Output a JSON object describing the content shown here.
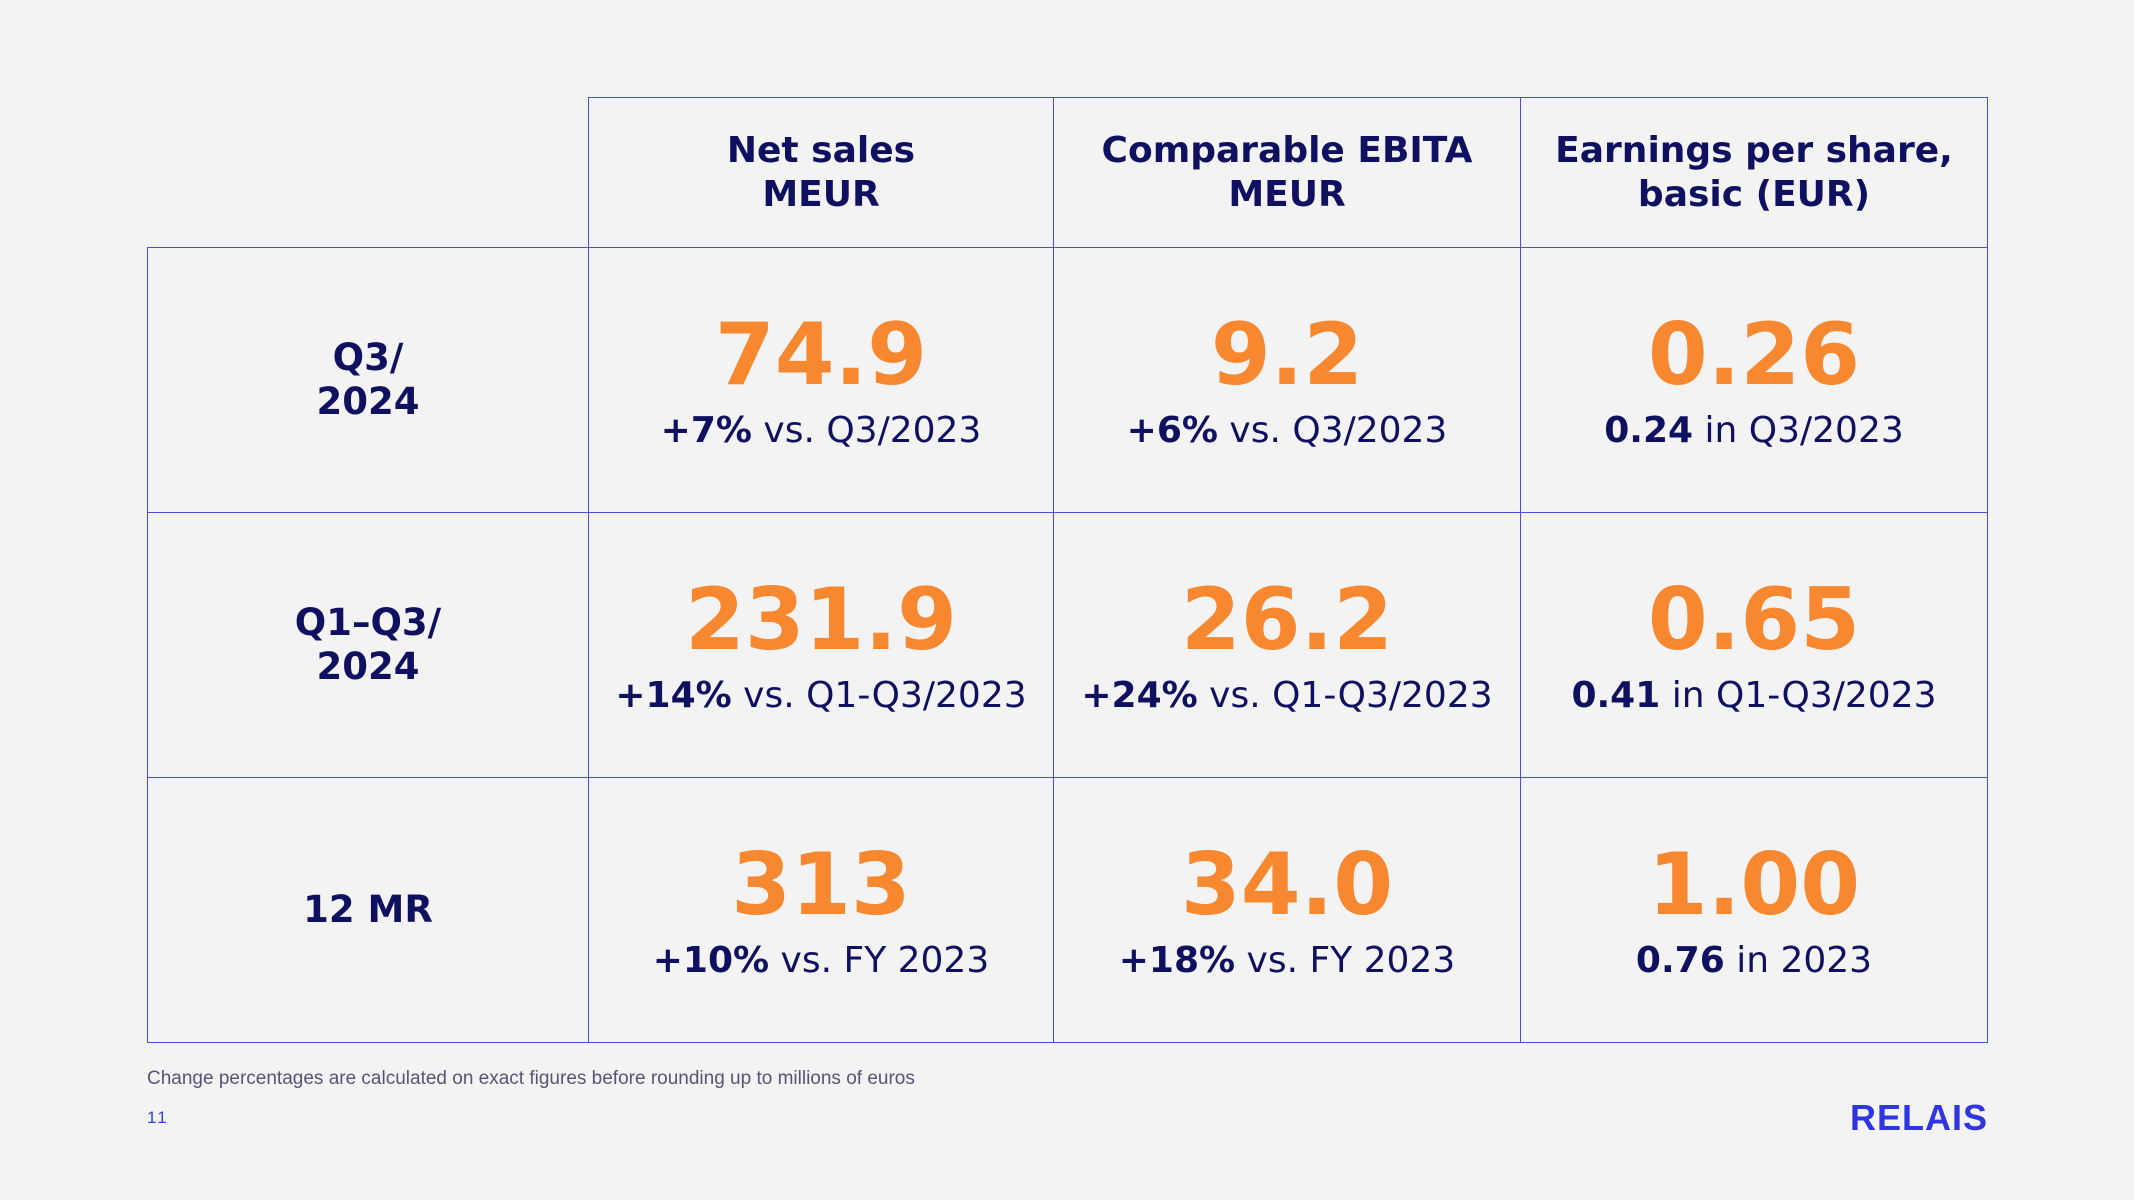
{
  "table": {
    "headers": [
      {
        "line1": "Net sales",
        "line2": "MEUR"
      },
      {
        "line1": "Comparable EBITA",
        "line2": "MEUR"
      },
      {
        "line1": "Earnings per share,",
        "line2": "basic (EUR)"
      }
    ],
    "rows": [
      {
        "label_line1": "Q3/",
        "label_line2": "2024",
        "cells": [
          {
            "value": "74.9",
            "bold": "+7%",
            "rest": " vs. Q3/2023"
          },
          {
            "value": "9.2",
            "bold": "+6%",
            "rest": " vs. Q3/2023"
          },
          {
            "value": "0.26",
            "bold": "0.24",
            "rest": " in Q3/2023"
          }
        ]
      },
      {
        "label_line1": "Q1–Q3/",
        "label_line2": "2024",
        "cells": [
          {
            "value": "231.9",
            "bold": "+14%",
            "rest": " vs. Q1-Q3/2023"
          },
          {
            "value": "26.2",
            "bold": "+24%",
            "rest": " vs. Q1-Q3/2023"
          },
          {
            "value": "0.65",
            "bold": "0.41",
            "rest": " in Q1-Q3/2023"
          }
        ]
      },
      {
        "label_line1": "12 MR",
        "label_line2": "",
        "cells": [
          {
            "value": "313",
            "bold": "+10%",
            "rest": " vs. FY 2023"
          },
          {
            "value": "34.0",
            "bold": "+18%",
            "rest": " vs. FY 2023"
          },
          {
            "value": "1.00",
            "bold": "0.76",
            "rest": " in 2023"
          }
        ]
      }
    ]
  },
  "footnote": "Change percentages are calculated on exact figures before rounding up to millions of euros",
  "page_number": "11",
  "logo_text": "RELAIS",
  "colors": {
    "accent_orange": "#f7882f",
    "navy_text": "#101060",
    "grid_blue": "#4a4de0",
    "logo_blue": "#2f35e0",
    "background": "#f3f3f3"
  }
}
